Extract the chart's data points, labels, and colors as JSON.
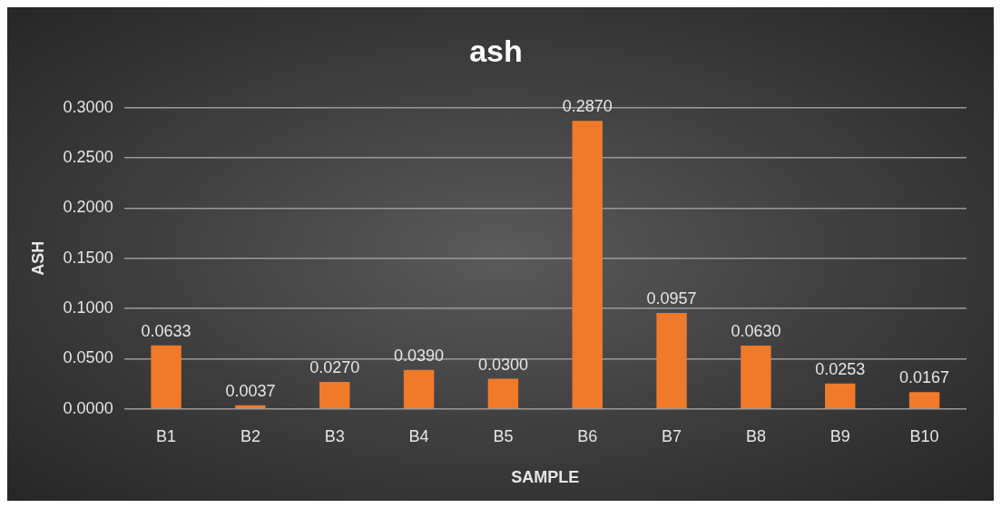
{
  "chart_data": {
    "type": "bar",
    "title": "ash",
    "xlabel": "SAMPLE",
    "ylabel": "ASH",
    "categories": [
      "B1",
      "B2",
      "B3",
      "B4",
      "B5",
      "B6",
      "B7",
      "B8",
      "B9",
      "B10"
    ],
    "values": [
      0.0633,
      0.0037,
      0.027,
      0.039,
      0.03,
      0.287,
      0.0957,
      0.063,
      0.0253,
      0.0167
    ],
    "value_labels": [
      "0.0633",
      "0.0037",
      "0.0270",
      "0.0390",
      "0.0300",
      "0.2870",
      "0.0957",
      "0.0630",
      "0.0253",
      "0.0167"
    ],
    "color": "#f07a2a",
    "ylim": [
      0,
      0.3
    ],
    "yticks": [
      {
        "value": 0,
        "label": "0.0000"
      },
      {
        "value": 0.05,
        "label": "0.0500"
      },
      {
        "value": 0.1,
        "label": "0.1000"
      },
      {
        "value": 0.15,
        "label": "0.1500"
      },
      {
        "value": 0.2,
        "label": "0.2000"
      },
      {
        "value": 0.25,
        "label": "0.2500"
      },
      {
        "value": 0.3,
        "label": "0.3000"
      }
    ],
    "grid": "y"
  }
}
